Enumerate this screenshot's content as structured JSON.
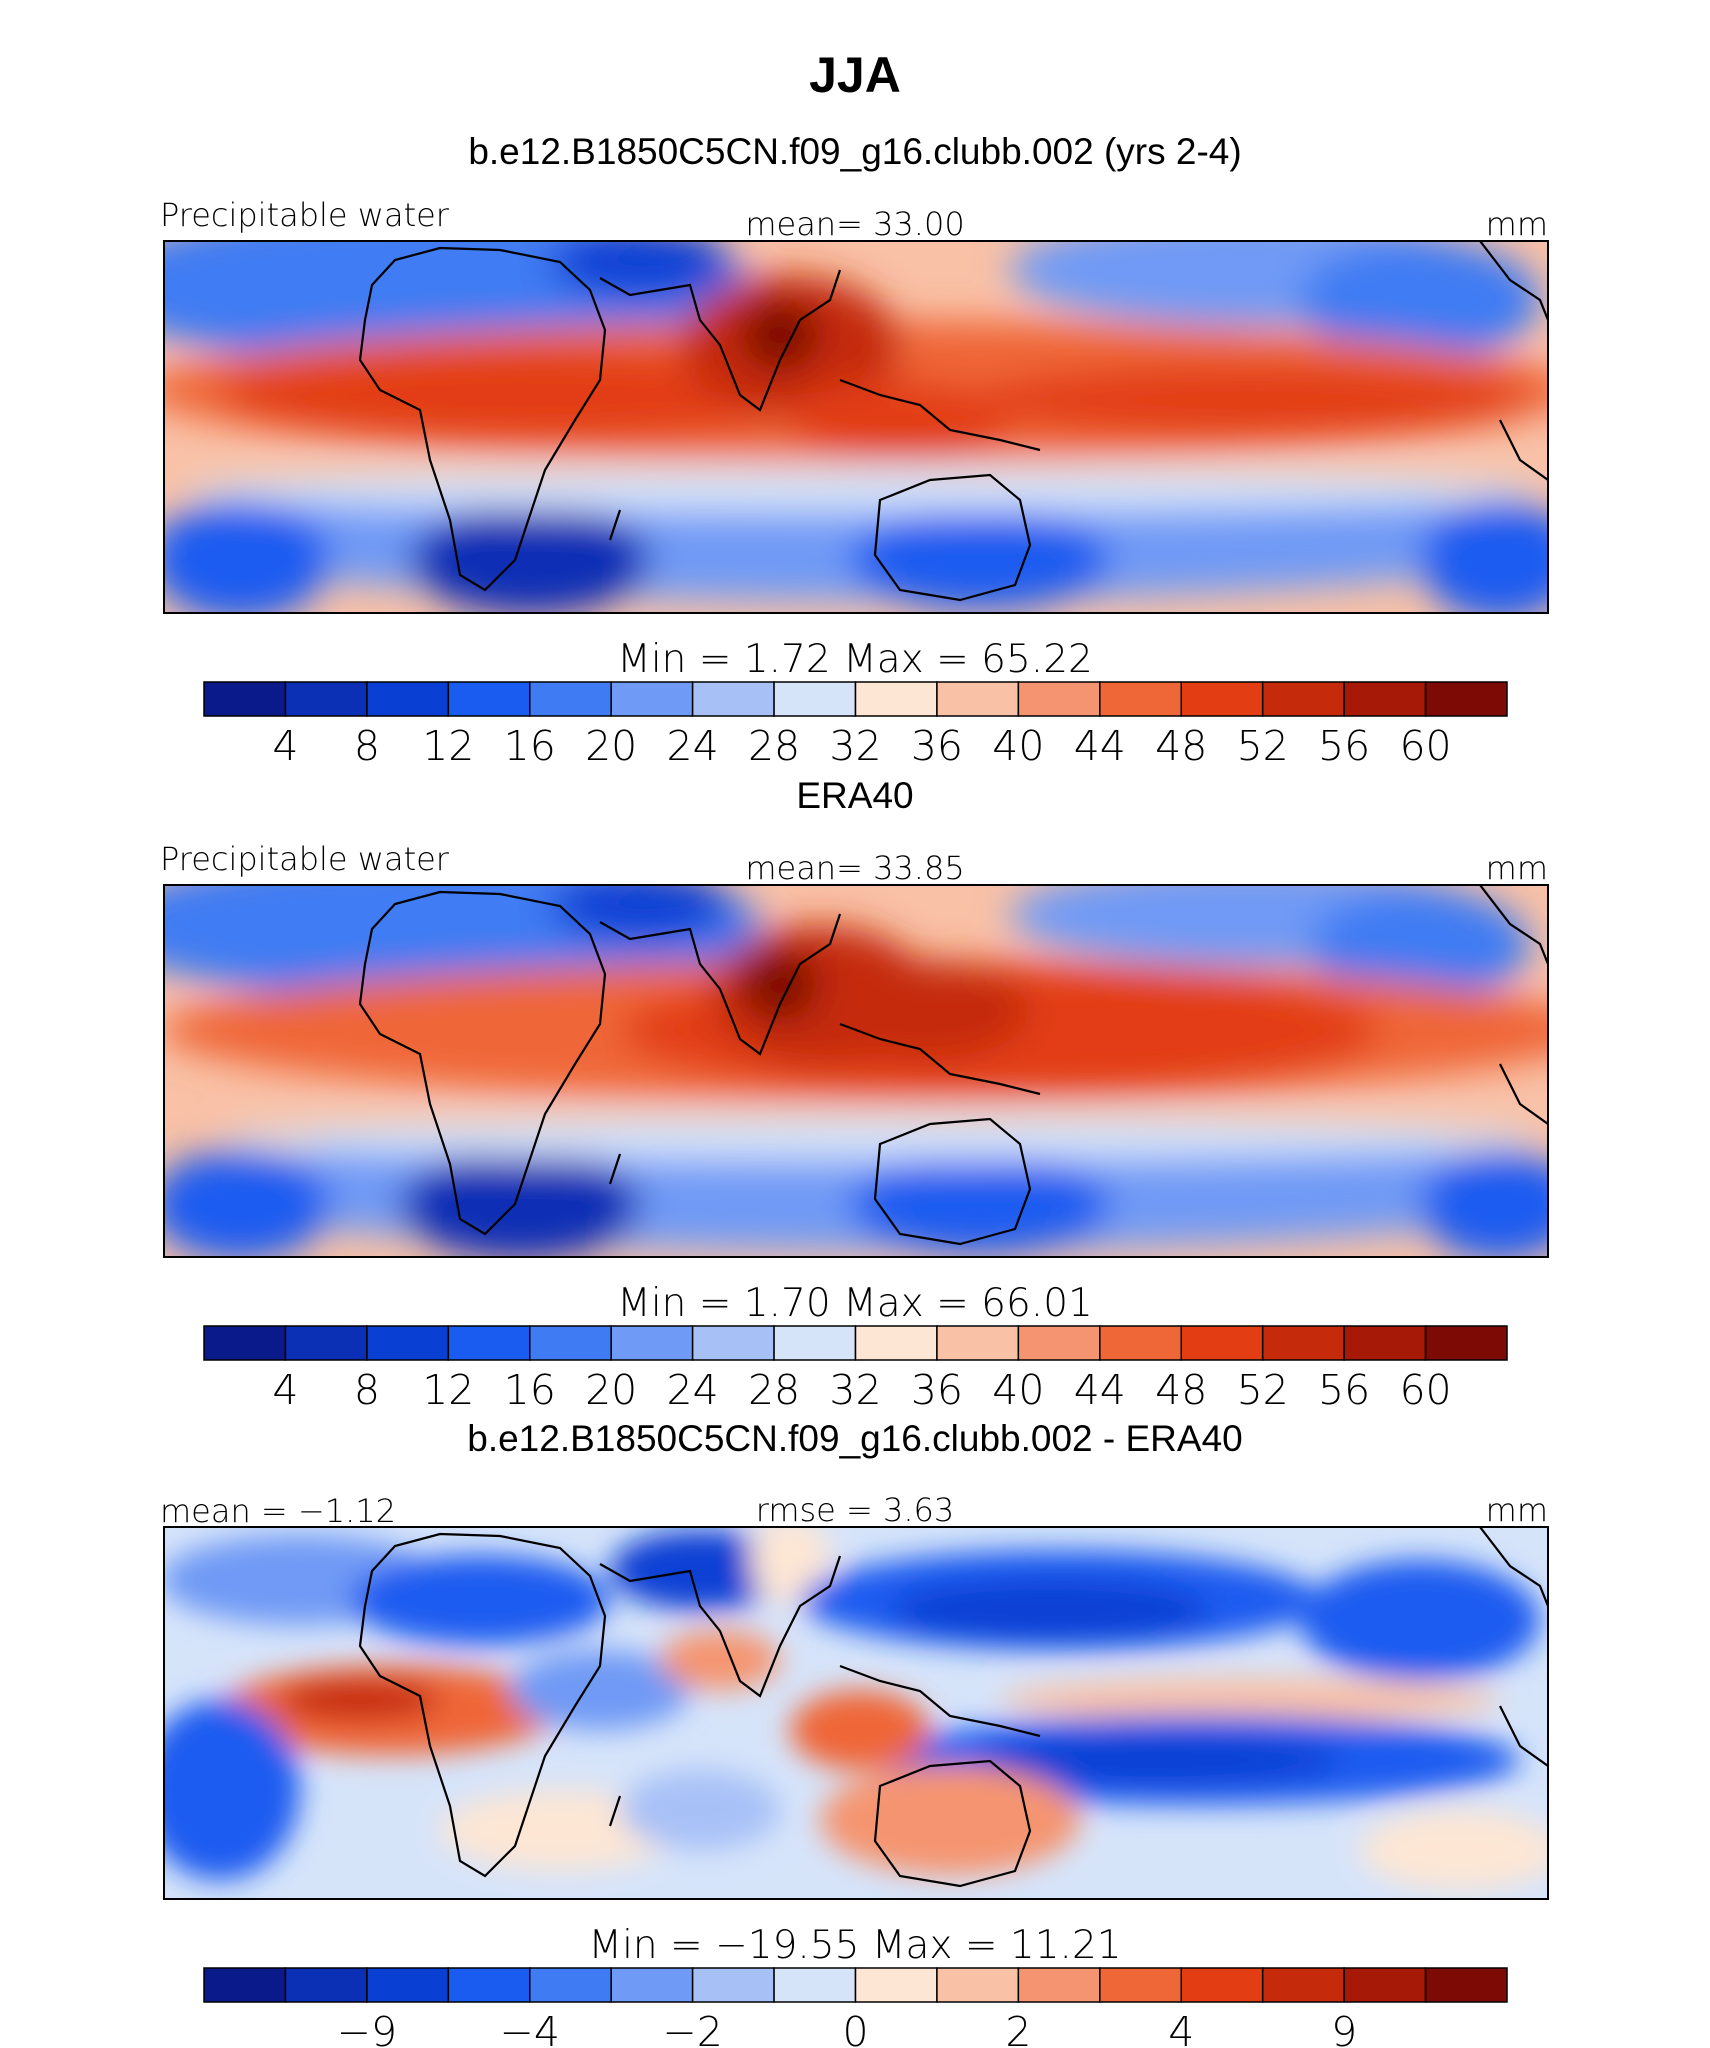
{
  "figure": {
    "title": "JJA"
  },
  "chart_data": [
    {
      "type": "heatmap",
      "title": "b.e12.B1850C5CN.f09_g16.clubb.002 (yrs 2-4)",
      "variable_label": "Precipitable water",
      "center_label": "mean=   33.00",
      "units": "mm",
      "min_max_label": "Min  =     1.72  Max  =    65.22",
      "colorbar": {
        "colors": [
          "#0a1a8a",
          "#0b2fb5",
          "#0a3fd4",
          "#1a5cf0",
          "#3f7cf3",
          "#6f9af5",
          "#a7c1f7",
          "#d6e4fa",
          "#fde6d4",
          "#f9c1a6",
          "#f59470",
          "#ef6637",
          "#e23d13",
          "#c52a0b",
          "#a61907",
          "#7d0a04"
        ],
        "tick_labels": [
          "4",
          "8",
          "12",
          "16",
          "20",
          "24",
          "28",
          "32",
          "36",
          "40",
          "44",
          "48",
          "52",
          "56",
          "60"
        ]
      }
    },
    {
      "type": "heatmap",
      "title": "ERA40",
      "variable_label": "Precipitable water",
      "center_label": "mean=   33.85",
      "units": "mm",
      "min_max_label": "Min  =     1.70  Max  =    66.01",
      "colorbar": {
        "colors": [
          "#0a1a8a",
          "#0b2fb5",
          "#0a3fd4",
          "#1a5cf0",
          "#3f7cf3",
          "#6f9af5",
          "#a7c1f7",
          "#d6e4fa",
          "#fde6d4",
          "#f9c1a6",
          "#f59470",
          "#ef6637",
          "#e23d13",
          "#c52a0b",
          "#a61907",
          "#7d0a04"
        ],
        "tick_labels": [
          "4",
          "8",
          "12",
          "16",
          "20",
          "24",
          "28",
          "32",
          "36",
          "40",
          "44",
          "48",
          "52",
          "56",
          "60"
        ]
      }
    },
    {
      "type": "heatmap",
      "title": "b.e12.B1850C5CN.f09_g16.clubb.002 - ERA40",
      "variable_label": "mean =   −1.12",
      "center_label": "rmse =    3.63",
      "units": "mm",
      "min_max_label": "Min  =  −19.55  Max  =    11.21",
      "colorbar": {
        "colors": [
          "#0a1a8a",
          "#0b2fb5",
          "#0a3fd4",
          "#1a5cf0",
          "#3f7cf3",
          "#6f9af5",
          "#a7c1f7",
          "#d6e4fa",
          "#fde6d4",
          "#f9c1a6",
          "#f59470",
          "#ef6637",
          "#e23d13",
          "#c52a0b",
          "#a61907",
          "#7d0a04"
        ],
        "tick_labels": [
          "−9",
          "−4",
          "−2",
          "0",
          "2",
          "4",
          "9"
        ]
      }
    }
  ]
}
